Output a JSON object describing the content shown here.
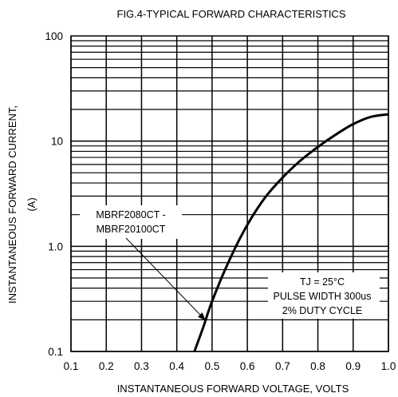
{
  "chart_data": {
    "type": "line",
    "title": "FIG.4-TYPICAL FORWARD CHARACTERISTICS",
    "xlabel": "INSTANTANEOUS FORWARD VOLTAGE, VOLTS",
    "ylabel_line1": "INSTANTANEOUS FORWARD CURRENT,",
    "ylabel_line2": "(A)",
    "x_scale": "linear",
    "y_scale": "log",
    "xlim": [
      0.1,
      1.0
    ],
    "ylim": [
      0.1,
      100
    ],
    "x_ticks": [
      {
        "value": 0.1,
        "label": "0.1"
      },
      {
        "value": 0.2,
        "label": "0.2"
      },
      {
        "value": 0.3,
        "label": "0.3"
      },
      {
        "value": 0.4,
        "label": "0.4"
      },
      {
        "value": 0.5,
        "label": "0.5"
      },
      {
        "value": 0.6,
        "label": "0.6"
      },
      {
        "value": 0.7,
        "label": "0.7"
      },
      {
        "value": 0.8,
        "label": "0.8"
      },
      {
        "value": 0.9,
        "label": "0.9"
      },
      {
        "value": 1.0,
        "label": "1.0"
      }
    ],
    "y_ticks": [
      {
        "value": 0.1,
        "label": "0.1"
      },
      {
        "value": 1,
        "label": "1.0"
      },
      {
        "value": 10,
        "label": "10"
      },
      {
        "value": 100,
        "label": "100"
      }
    ],
    "grid": true,
    "series": [
      {
        "color": "#000000",
        "points": [
          {
            "x": 0.45,
            "y": 0.1
          },
          {
            "x": 0.475,
            "y": 0.17
          },
          {
            "x": 0.5,
            "y": 0.3
          },
          {
            "x": 0.55,
            "y": 0.75
          },
          {
            "x": 0.6,
            "y": 1.6
          },
          {
            "x": 0.65,
            "y": 2.9
          },
          {
            "x": 0.7,
            "y": 4.5
          },
          {
            "x": 0.75,
            "y": 6.5
          },
          {
            "x": 0.8,
            "y": 8.8
          },
          {
            "x": 0.85,
            "y": 11.5
          },
          {
            "x": 0.9,
            "y": 14.5
          },
          {
            "x": 0.95,
            "y": 17.0
          },
          {
            "x": 1.0,
            "y": 18.0
          }
        ]
      }
    ],
    "annotations": {
      "part_label_line1": "MBRF2080CT -",
      "part_label_line2": "MBRF20100CT",
      "arrow_target": {
        "x": 0.48,
        "y": 0.2
      },
      "conditions_line1": "TJ = 25°C",
      "conditions_line2": "PULSE WIDTH 300us",
      "conditions_line3": "2% DUTY CYCLE"
    }
  }
}
